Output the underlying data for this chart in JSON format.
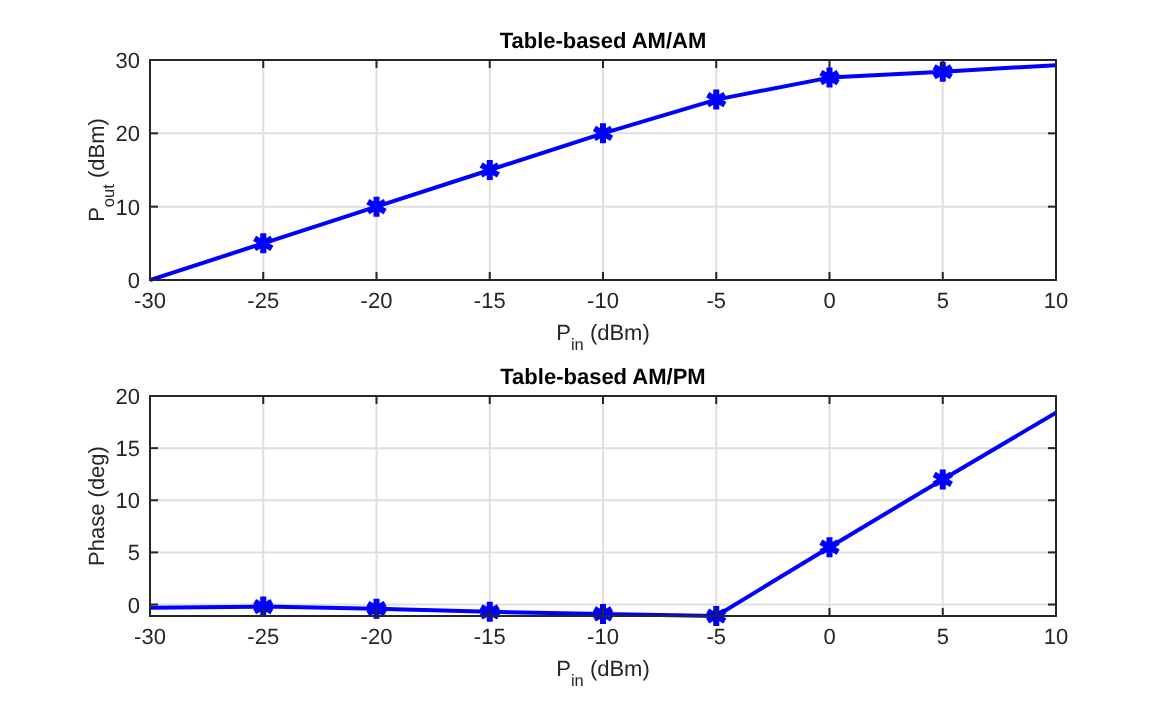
{
  "chart_data": [
    {
      "type": "line",
      "title": "Table-based AM/AM",
      "xlabel": "P$_{in}$ (dBm)",
      "ylabel": "P$_{out}$ (dBm)",
      "xlim": [
        -30,
        10
      ],
      "xticks": [
        -30,
        -25,
        -20,
        -15,
        -10,
        -5,
        0,
        5,
        10
      ],
      "ylim": [
        0,
        30
      ],
      "yticks": [
        0,
        10,
        20,
        30
      ],
      "grid": true,
      "series": [
        {
          "color": "#0000ff",
          "marker": "none",
          "x": [
            -30,
            -25,
            -20,
            -15,
            -10,
            -5,
            0,
            5,
            10
          ],
          "values": [
            0,
            5,
            10,
            15,
            20,
            24.6,
            27.6,
            28.4,
            29.3
          ]
        },
        {
          "type": "scatter",
          "color": "#0000ff",
          "marker": "cross",
          "x": [
            -25,
            -20,
            -15,
            -10,
            -5,
            0,
            5
          ],
          "values": [
            5,
            10,
            15,
            20,
            24.6,
            27.6,
            28.4
          ]
        }
      ]
    },
    {
      "type": "line",
      "title": "Table-based AM/PM",
      "xlabel": "P$_{in}$ (dBm)",
      "ylabel": "Phase (deg)",
      "xlim": [
        -30,
        10
      ],
      "xticks": [
        -30,
        -25,
        -20,
        -15,
        -10,
        -5,
        0,
        5,
        10
      ],
      "ylim": [
        -1.1,
        20
      ],
      "yticks": [
        0,
        5,
        10,
        15,
        20
      ],
      "grid": true,
      "series": [
        {
          "color": "#0000ff",
          "marker": "none",
          "x": [
            -30,
            -25,
            -20,
            -15,
            -10,
            -5,
            0,
            5,
            10
          ],
          "values": [
            -0.3,
            -0.2,
            -0.4,
            -0.7,
            -0.9,
            -1.1,
            5.5,
            12,
            18.4
          ]
        },
        {
          "type": "scatter",
          "color": "#0000ff",
          "marker": "cross",
          "x": [
            -25,
            -20,
            -15,
            -10,
            -5,
            0,
            5
          ],
          "values": [
            -0.2,
            -0.4,
            -0.7,
            -0.9,
            -1.1,
            5.5,
            12
          ]
        }
      ]
    }
  ]
}
